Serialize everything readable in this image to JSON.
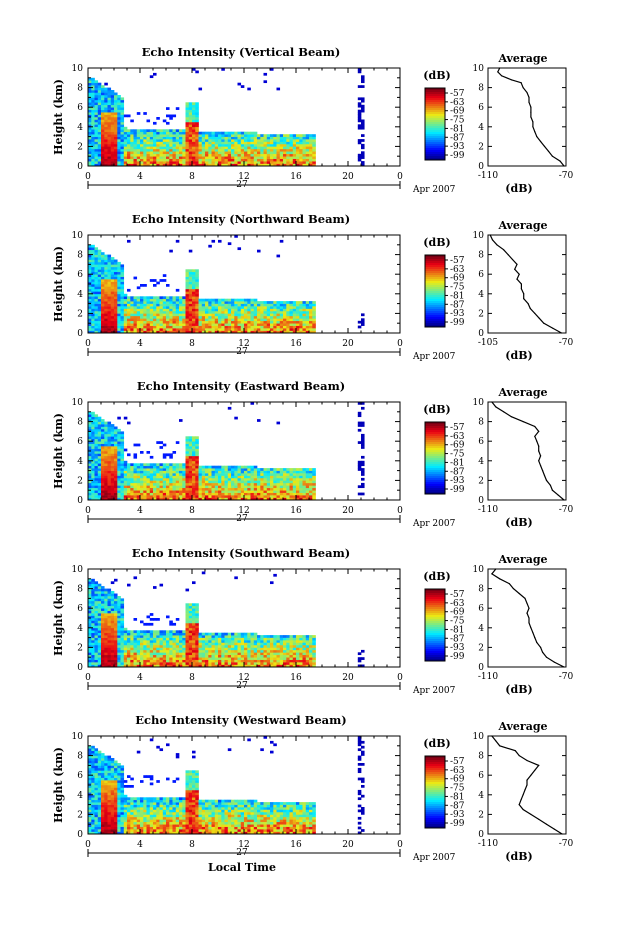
{
  "chart_data": [
    {
      "type": "heatmap",
      "title": "Echo Intensity (Vertical Beam)",
      "ylabel": "Height (km)",
      "yticks": [
        "0",
        "2",
        "4",
        "6",
        "8",
        "10"
      ],
      "ylim": [
        0,
        10
      ],
      "xlim": [
        0,
        24
      ],
      "xticks": [
        "0",
        "4",
        "8",
        "12",
        "16",
        "20",
        "0"
      ],
      "date_label": "27",
      "month_label": "Apr 2007",
      "colorbar": {
        "unit": "(dB)",
        "ticks": [
          "-57",
          "-63",
          "-69",
          "-75",
          "-81",
          "-87",
          "-93",
          "-99"
        ],
        "range": [
          -99,
          -57
        ]
      },
      "profile": {
        "title": "Average",
        "xlabel": "(dB)",
        "xticks": [
          "-110",
          "-70"
        ],
        "xlim": [
          -110,
          -70
        ],
        "yticks": [
          "0",
          "2",
          "4",
          "6",
          "8",
          "10"
        ],
        "points": [
          [
            -104,
            10
          ],
          [
            -105,
            9.6
          ],
          [
            -103,
            9.2
          ],
          [
            -98,
            8.8
          ],
          [
            -93,
            8.5
          ],
          [
            -92,
            8
          ],
          [
            -90,
            7.5
          ],
          [
            -89,
            7
          ],
          [
            -89,
            6.5
          ],
          [
            -88,
            6
          ],
          [
            -88,
            5.5
          ],
          [
            -88,
            5
          ],
          [
            -87,
            4.5
          ],
          [
            -87,
            4
          ],
          [
            -86,
            3.5
          ],
          [
            -85,
            3
          ],
          [
            -83,
            2.5
          ],
          [
            -81,
            2
          ],
          [
            -79,
            1.5
          ],
          [
            -77,
            1
          ],
          [
            -73,
            0.5
          ],
          [
            -71,
            0
          ]
        ]
      }
    },
    {
      "type": "heatmap",
      "title": "Echo Intensity (Northward Beam)",
      "ylabel": "Height (km)",
      "yticks": [
        "0",
        "2",
        "4",
        "6",
        "8",
        "10"
      ],
      "ylim": [
        0,
        10
      ],
      "xlim": [
        0,
        24
      ],
      "xticks": [
        "0",
        "4",
        "8",
        "12",
        "16",
        "20",
        "0"
      ],
      "date_label": "27",
      "month_label": "Apr 2007",
      "colorbar": {
        "unit": "(dB)",
        "ticks": [
          "-57",
          "-63",
          "-69",
          "-75",
          "-81",
          "-87",
          "-93",
          "-99"
        ],
        "range": [
          -99,
          -57
        ]
      },
      "profile": {
        "title": "Average",
        "xlabel": "(dB)",
        "xticks": [
          "-105",
          "-70"
        ],
        "xlim": [
          -105,
          -70
        ],
        "yticks": [
          "0",
          "2",
          "4",
          "6",
          "8",
          "10"
        ],
        "points": [
          [
            -104,
            10
          ],
          [
            -103,
            9.5
          ],
          [
            -101,
            9
          ],
          [
            -98,
            8.5
          ],
          [
            -96,
            8
          ],
          [
            -94,
            7.5
          ],
          [
            -92,
            7
          ],
          [
            -93,
            6.5
          ],
          [
            -91,
            6
          ],
          [
            -92,
            5.5
          ],
          [
            -90,
            5
          ],
          [
            -90,
            4.5
          ],
          [
            -89,
            4
          ],
          [
            -89,
            3.5
          ],
          [
            -87,
            3
          ],
          [
            -86,
            2.5
          ],
          [
            -84,
            2
          ],
          [
            -82,
            1.5
          ],
          [
            -80,
            1
          ],
          [
            -76,
            0.5
          ],
          [
            -72,
            0
          ]
        ]
      }
    },
    {
      "type": "heatmap",
      "title": "Echo Intensity (Eastward Beam)",
      "ylabel": "Height (km)",
      "yticks": [
        "0",
        "2",
        "4",
        "6",
        "8",
        "10"
      ],
      "ylim": [
        0,
        10
      ],
      "xlim": [
        0,
        24
      ],
      "xticks": [
        "0",
        "4",
        "8",
        "12",
        "16",
        "20",
        "0"
      ],
      "date_label": "27",
      "month_label": "Apr 2007",
      "colorbar": {
        "unit": "(dB)",
        "ticks": [
          "-57",
          "-63",
          "-69",
          "-75",
          "-81",
          "-87",
          "-93",
          "-99"
        ],
        "range": [
          -99,
          -57
        ]
      },
      "profile": {
        "title": "Average",
        "xlabel": "(dB)",
        "xticks": [
          "-110",
          "-70"
        ],
        "xlim": [
          -110,
          -70
        ],
        "yticks": [
          "0",
          "2",
          "4",
          "6",
          "8",
          "10"
        ],
        "points": [
          [
            -108,
            10
          ],
          [
            -106,
            9.5
          ],
          [
            -102,
            9
          ],
          [
            -98,
            8.5
          ],
          [
            -92,
            8
          ],
          [
            -86,
            7.5
          ],
          [
            -84,
            7
          ],
          [
            -86,
            6.5
          ],
          [
            -85,
            6
          ],
          [
            -84,
            5.5
          ],
          [
            -84,
            5
          ],
          [
            -83,
            4.5
          ],
          [
            -84,
            4
          ],
          [
            -83,
            3.5
          ],
          [
            -82,
            3
          ],
          [
            -81,
            2.5
          ],
          [
            -80,
            2
          ],
          [
            -78,
            1.5
          ],
          [
            -77,
            1
          ],
          [
            -74,
            0.5
          ],
          [
            -71,
            0
          ]
        ]
      }
    },
    {
      "type": "heatmap",
      "title": "Echo Intensity (Southward Beam)",
      "ylabel": "Height (km)",
      "yticks": [
        "0",
        "2",
        "4",
        "6",
        "8",
        "10"
      ],
      "ylim": [
        0,
        10
      ],
      "xlim": [
        0,
        24
      ],
      "xticks": [
        "0",
        "4",
        "8",
        "12",
        "16",
        "20",
        "0"
      ],
      "date_label": "27",
      "month_label": "Apr 2007",
      "colorbar": {
        "unit": "(dB)",
        "ticks": [
          "-57",
          "-63",
          "-69",
          "-75",
          "-81",
          "-87",
          "-93",
          "-99"
        ],
        "range": [
          -99,
          -57
        ]
      },
      "profile": {
        "title": "Average",
        "xlabel": "(dB)",
        "xticks": [
          "-110",
          "-70"
        ],
        "xlim": [
          -110,
          -70
        ],
        "yticks": [
          "0",
          "2",
          "4",
          "6",
          "8",
          "10"
        ],
        "points": [
          [
            -106,
            10
          ],
          [
            -108,
            9.5
          ],
          [
            -104,
            9
          ],
          [
            -99,
            8.5
          ],
          [
            -97,
            8
          ],
          [
            -94,
            7.5
          ],
          [
            -91,
            7
          ],
          [
            -90,
            6.5
          ],
          [
            -89,
            6
          ],
          [
            -90,
            5.5
          ],
          [
            -89,
            5
          ],
          [
            -89,
            4.5
          ],
          [
            -88,
            4
          ],
          [
            -87,
            3.5
          ],
          [
            -86,
            3
          ],
          [
            -85,
            2.5
          ],
          [
            -83,
            2
          ],
          [
            -82,
            1.5
          ],
          [
            -80,
            1
          ],
          [
            -76,
            0.5
          ],
          [
            -71,
            0
          ]
        ]
      }
    },
    {
      "type": "heatmap",
      "title": "Echo Intensity (Westward Beam)",
      "ylabel": "Height (km)",
      "yticks": [
        "0",
        "2",
        "4",
        "6",
        "8",
        "10"
      ],
      "ylim": [
        0,
        10
      ],
      "xlim": [
        0,
        24
      ],
      "xticks": [
        "0",
        "4",
        "8",
        "12",
        "16",
        "20",
        "0"
      ],
      "date_label": "27",
      "month_label": "Apr 2007",
      "xlabel": "Local Time",
      "colorbar": {
        "unit": "(dB)",
        "ticks": [
          "-57",
          "-63",
          "-69",
          "-75",
          "-81",
          "-87",
          "-93",
          "-99"
        ],
        "range": [
          -99,
          -57
        ]
      },
      "profile": {
        "title": "Average",
        "xlabel": "(dB)",
        "xticks": [
          "-110",
          "-70"
        ],
        "xlim": [
          -110,
          -70
        ],
        "yticks": [
          "0",
          "2",
          "4",
          "6",
          "8",
          "10"
        ],
        "points": [
          [
            -108,
            10
          ],
          [
            -106,
            9.5
          ],
          [
            -104,
            9
          ],
          [
            -96,
            8.5
          ],
          [
            -94,
            8
          ],
          [
            -90,
            7.5
          ],
          [
            -84,
            7
          ],
          [
            -86,
            6.5
          ],
          [
            -88,
            6
          ],
          [
            -90,
            5.5
          ],
          [
            -90,
            5
          ],
          [
            -91,
            4.5
          ],
          [
            -92,
            4
          ],
          [
            -93,
            3.5
          ],
          [
            -94,
            3
          ],
          [
            -92,
            2.5
          ],
          [
            -88,
            2
          ],
          [
            -84,
            1.5
          ],
          [
            -80,
            1
          ],
          [
            -76,
            0.5
          ],
          [
            -72,
            0
          ]
        ]
      }
    }
  ]
}
